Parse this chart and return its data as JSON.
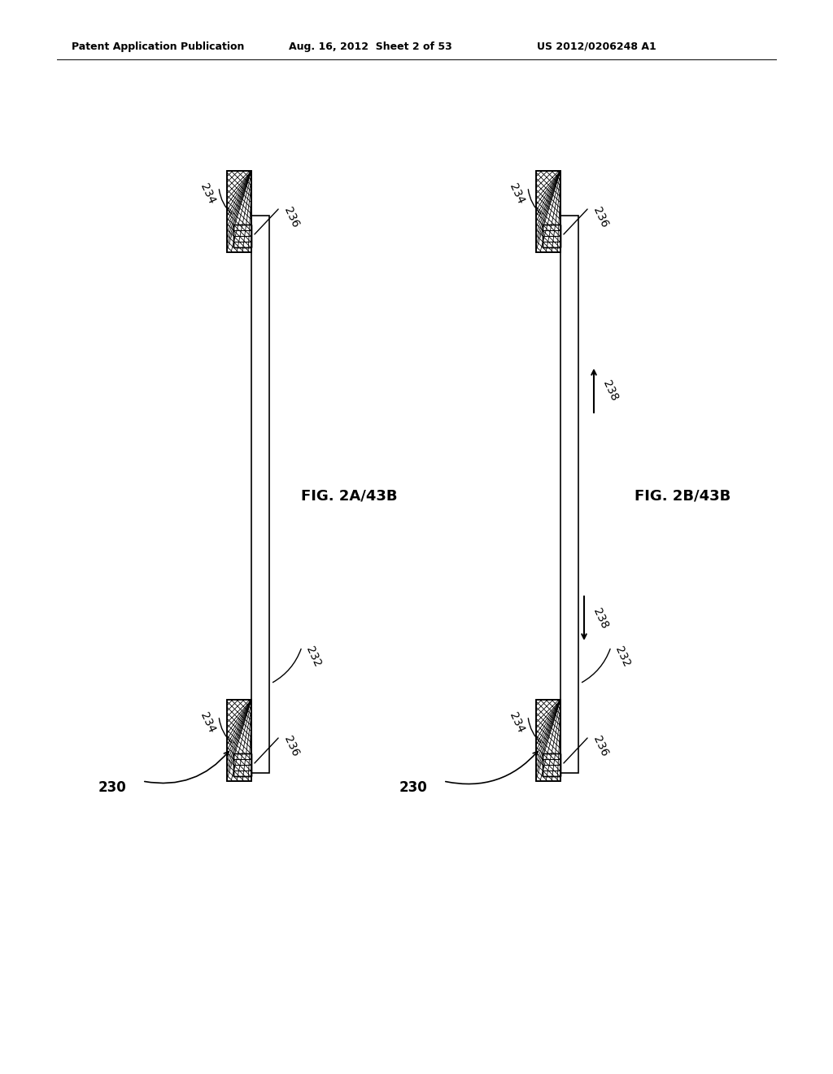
{
  "bg_color": "#ffffff",
  "header_text": "Patent Application Publication",
  "header_date": "Aug. 16, 2012  Sheet 2 of 53",
  "header_patent": "US 2012/0206248 A1",
  "fig_label_2A": "FIG. 2A/43B",
  "fig_label_2B": "FIG. 2B/43B",
  "label_230": "230",
  "label_232": "232",
  "label_234": "234",
  "label_236": "236",
  "label_238": "238",
  "lw_beam": 1.2,
  "lw_block": 1.2
}
